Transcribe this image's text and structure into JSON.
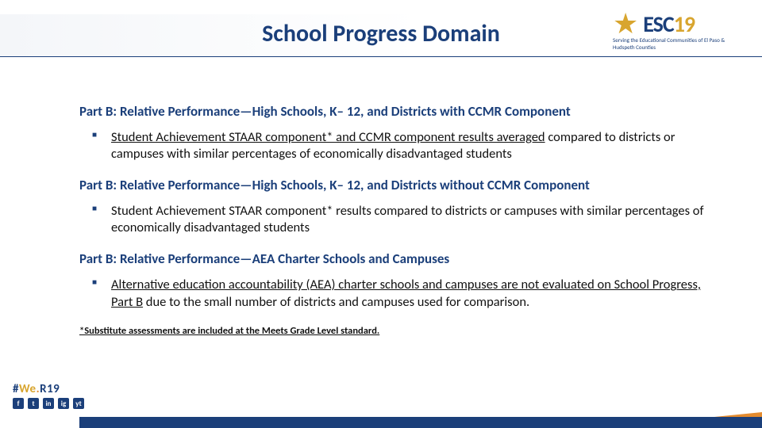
{
  "title": "School Progress Domain",
  "logo": {
    "brand_prefix": "ESC",
    "brand_num": "19",
    "tagline": "Serving the Educational Communities of El Paso & Hudspeth Counties",
    "colors": {
      "navy": "#1b3f7a",
      "gold": "#d8a52f",
      "orange": "#e38b2f"
    }
  },
  "sections": [
    {
      "heading": "Part B: Relative Performance—High Schools, K– 12, and Districts with CCMR Component",
      "bullet_underlined": "Student Achievement STAAR component* and CCMR component results averaged",
      "bullet_rest": " compared to districts or campuses with similar percentages of economically disadvantaged students"
    },
    {
      "heading": "Part B: Relative Performance—High Schools, K– 12, and Districts without CCMR Component",
      "bullet_underlined": "",
      "bullet_rest": "Student Achievement STAAR component* results compared to districts or campuses with similar percentages of economically disadvantaged students"
    },
    {
      "heading": "Part B: Relative Performance—AEA Charter Schools and Campuses",
      "bullet_underlined": "Alternative education accountability (AEA) charter schools and campuses are not evaluated on School Progress, Part B",
      "bullet_rest": " due to the small number of districts and campuses used for comparison."
    }
  ],
  "footnote": "*Substitute assessments are included at the Meets Grade Level standard.",
  "hashtag": {
    "pre": "#",
    "p1": "We",
    "p2": ".",
    "p3": "R",
    "p4": "19"
  },
  "social_icons": [
    "f",
    "t",
    "in",
    "ig",
    "yt"
  ]
}
